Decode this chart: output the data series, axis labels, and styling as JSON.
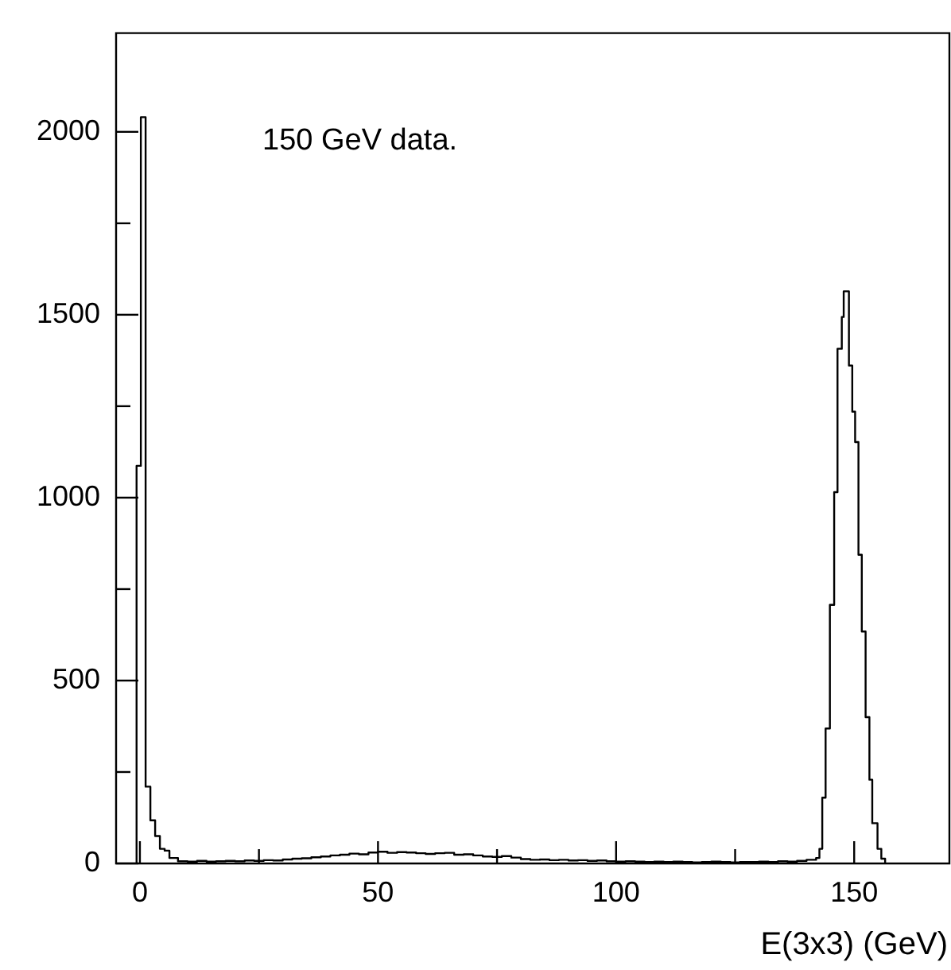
{
  "chart_data": {
    "type": "histogram",
    "xlabel": "E(3x3) (GeV)",
    "annotations": [
      "150 GeV data."
    ],
    "color": "#000000",
    "bins": [
      -0.7,
      0.2,
      1.2,
      2.2,
      3.2,
      4.2,
      5.2,
      6.2,
      8,
      10,
      12,
      14,
      16,
      18,
      20,
      22,
      24,
      26,
      28,
      30,
      32,
      34,
      36,
      38,
      40,
      42,
      44,
      46,
      48,
      50,
      52,
      54,
      56,
      58,
      60,
      62,
      64,
      66,
      68,
      70,
      72,
      74,
      76,
      78,
      80,
      82,
      84,
      86,
      88,
      90,
      92,
      94,
      96,
      98,
      100,
      102,
      104,
      106,
      108,
      110,
      112,
      114,
      116,
      118,
      120,
      122,
      124,
      126,
      128,
      130,
      132,
      134,
      136,
      138,
      140,
      142,
      142.7,
      143.3,
      144.0,
      144.9,
      145.8,
      146.5,
      147.4,
      147.8,
      148.9,
      149.6,
      150.2,
      150.9,
      151.6,
      152.4,
      153.2,
      153.8,
      154.9,
      155.7,
      156.5
    ],
    "values": [
      1087,
      2040,
      210,
      118,
      75,
      40,
      35,
      15,
      6,
      5,
      7,
      5,
      6,
      7,
      6,
      8,
      7,
      9,
      8,
      11,
      13,
      14,
      17,
      19,
      22,
      24,
      27,
      25,
      30,
      32,
      29,
      31,
      30,
      28,
      26,
      28,
      29,
      24,
      25,
      22,
      19,
      18,
      20,
      16,
      12,
      10,
      11,
      9,
      10,
      8,
      9,
      7,
      8,
      6,
      5,
      6,
      5,
      4,
      5,
      4,
      5,
      4,
      3,
      4,
      5,
      4,
      3,
      4,
      4,
      5,
      4,
      6,
      5,
      7,
      10,
      15,
      40,
      180,
      369,
      707,
      1015,
      1407,
      1494,
      1564,
      1361,
      1235,
      1152,
      844,
      634,
      400,
      229,
      110,
      40,
      13
    ],
    "xlim": [
      -5,
      170
    ],
    "ylim": [
      0,
      2270
    ],
    "xticks": [
      0,
      {
        "value": 25,
        "label": null
      },
      50,
      {
        "value": 75,
        "label": null
      },
      100,
      {
        "value": 125,
        "label": null
      },
      150
    ],
    "yticks": [
      0,
      {
        "value": 250,
        "label": null
      },
      500,
      {
        "value": 750,
        "label": null
      },
      1000,
      {
        "value": 1250,
        "label": null
      },
      1500,
      {
        "value": 1750,
        "label": null
      },
      2000
    ]
  }
}
